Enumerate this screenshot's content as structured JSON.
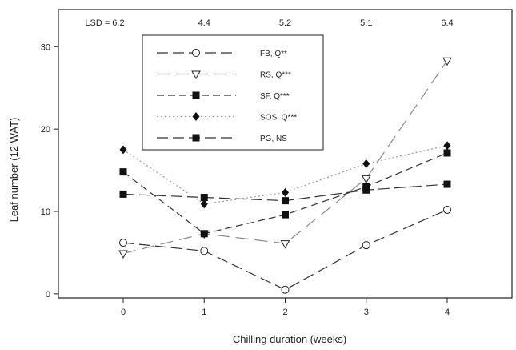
{
  "chart_data": {
    "type": "line",
    "xlabel": "Chilling duration (weeks)",
    "ylabel": "Leaf number (12 WAT)",
    "x": [
      0,
      1,
      2,
      3,
      4
    ],
    "xticks": [
      "0",
      "1",
      "2",
      "3",
      "4"
    ],
    "xlim": [
      -0.8,
      4.8
    ],
    "yticks": [
      "0",
      "10",
      "20",
      "30"
    ],
    "ylim": [
      -0.5,
      34.5
    ],
    "grid": false,
    "legend_position": "top-left",
    "lsd_labels": [
      "LSD = 6.2",
      "4.4",
      "5.2",
      "5.1",
      "6.4"
    ],
    "series": [
      {
        "name": "FB, Q**",
        "marker": "open-circle",
        "dash": "long-dash",
        "values": [
          6.2,
          5.2,
          0.5,
          5.9,
          10.2
        ]
      },
      {
        "name": "RS, Q***",
        "marker": "open-triangle-down",
        "dash": "long-dash-light",
        "values": [
          4.9,
          7.3,
          6.1,
          14.0,
          28.3
        ]
      },
      {
        "name": "SF, Q***",
        "marker": "filled-square",
        "dash": "medium-dash",
        "values": [
          14.8,
          7.3,
          9.6,
          13.0,
          17.1
        ]
      },
      {
        "name": "SOS, Q***",
        "marker": "filled-diamond",
        "dash": "dotted",
        "values": [
          17.5,
          10.9,
          12.3,
          15.8,
          18.0
        ]
      },
      {
        "name": "PG, NS",
        "marker": "filled-square",
        "dash": "long-dash",
        "values": [
          12.1,
          11.7,
          11.3,
          12.6,
          13.3
        ]
      }
    ]
  }
}
